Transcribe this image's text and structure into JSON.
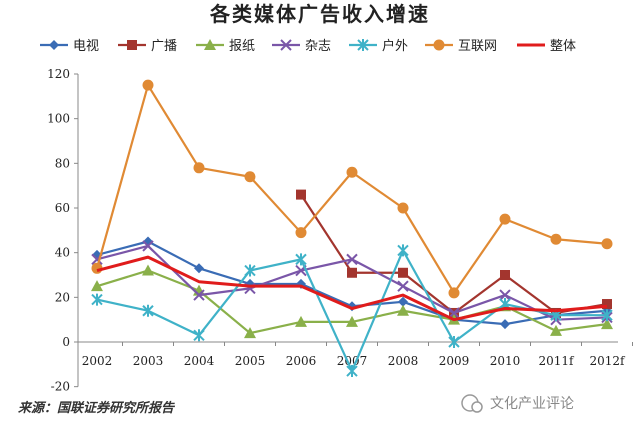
{
  "chart_data": {
    "type": "line",
    "title": "各类媒体广告收入增速",
    "categories": [
      "2002",
      "2003",
      "2004",
      "2005",
      "2006",
      "2007",
      "2008",
      "2009",
      "2010",
      "2011f",
      "2012f"
    ],
    "ylim": [
      -20,
      120
    ],
    "yticks": [
      -20,
      0,
      20,
      40,
      60,
      80,
      100,
      120
    ],
    "grid": false,
    "legend": "top",
    "series": [
      {
        "name": "电视",
        "color": "#3a6cb5",
        "marker": "diamond",
        "values": [
          39,
          45,
          33,
          26,
          26,
          16,
          18,
          10,
          8,
          12,
          14
        ]
      },
      {
        "name": "广播",
        "color": "#a3352e",
        "marker": "square",
        "values": [
          null,
          null,
          null,
          null,
          66,
          31,
          31,
          13,
          30,
          13,
          17
        ]
      },
      {
        "name": "报纸",
        "color": "#8ab04a",
        "marker": "triangle",
        "values": [
          25,
          32,
          23,
          4,
          9,
          9,
          14,
          10,
          16,
          5,
          8
        ]
      },
      {
        "name": "杂志",
        "color": "#7a56a8",
        "marker": "x",
        "values": [
          37,
          43,
          21,
          24,
          32,
          37,
          25,
          13,
          21,
          10,
          11
        ]
      },
      {
        "name": "户外",
        "color": "#3fb2c8",
        "marker": "star",
        "values": [
          19,
          14,
          3,
          32,
          37,
          -13,
          41,
          0,
          17,
          12,
          12
        ]
      },
      {
        "name": "互联网",
        "color": "#e08a34",
        "marker": "circle",
        "values": [
          33,
          115,
          78,
          74,
          49,
          76,
          60,
          22,
          55,
          46,
          44
        ]
      },
      {
        "name": "整体",
        "color": "#e01c1c",
        "marker": "none",
        "values": [
          32,
          38,
          27,
          25,
          25,
          15,
          21,
          10,
          15,
          14,
          16
        ]
      }
    ]
  },
  "source": "来源：国联证券研究所报告",
  "watermark": "文化产业评论"
}
